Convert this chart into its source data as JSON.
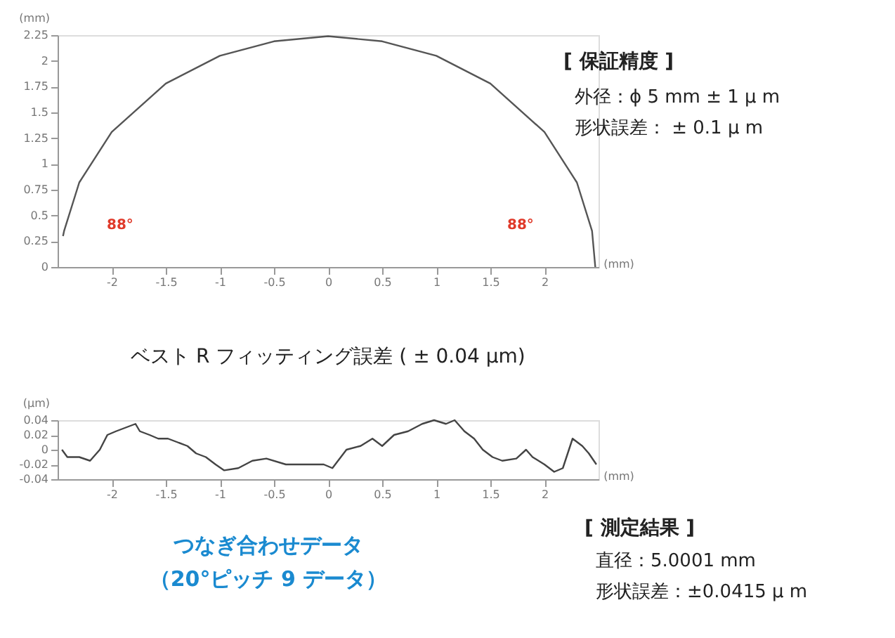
{
  "chart_data": [
    {
      "type": "line",
      "xlabel": "(mm)",
      "ylabel": "(mm)",
      "series": [
        {
          "color": "#555555",
          "x": [
            -2.45,
            -2.44,
            -2.3,
            -2.0,
            -1.5,
            -1.0,
            -0.5,
            0,
            0.5,
            1.0,
            1.5,
            2.0,
            2.3,
            2.44,
            2.47
          ],
          "values": [
            0.3,
            0.35,
            0.82,
            1.31,
            1.78,
            2.05,
            2.19,
            2.24,
            2.19,
            2.05,
            1.78,
            1.31,
            0.82,
            0.35,
            0.0
          ]
        }
      ],
      "xlim": [
        -2.5,
        2.5
      ],
      "ylim": [
        0,
        2.25
      ],
      "xticks": [
        -2,
        -1.5,
        -1,
        -0.5,
        0,
        0.5,
        1,
        1.5,
        2
      ],
      "yticks": [
        0,
        0.25,
        0.5,
        0.75,
        1,
        1.25,
        1.5,
        1.75,
        2,
        2.25
      ],
      "annotations": [
        "88°",
        "88°",
        "[ 保証精度 ]",
        "外径：ϕ 5 mm ± 1 μ m",
        "形状誤差： ± 0.1 μ m"
      ]
    },
    {
      "type": "line",
      "title": "ベスト R フィッティング誤差 ( ± 0.04 μm)",
      "xlabel": "(mm)",
      "ylabel": "(μm)",
      "series": [
        {
          "color": "#444444",
          "x": [
            -2.46,
            -2.41,
            -2.3,
            -2.2,
            -2.11,
            -2.04,
            -1.96,
            -1.87,
            -1.78,
            -1.74,
            -1.65,
            -1.57,
            -1.48,
            -1.39,
            -1.3,
            -1.22,
            -1.13,
            -1.04,
            -0.96,
            -0.83,
            -0.7,
            -0.57,
            -0.39,
            -0.22,
            -0.04,
            0.04,
            0.17,
            0.3,
            0.41,
            0.5,
            0.61,
            0.74,
            0.87,
            0.98,
            1.09,
            1.17,
            1.26,
            1.35,
            1.43,
            1.52,
            1.61,
            1.74,
            1.83,
            1.89,
            2.0,
            2.09,
            2.17,
            2.26,
            2.35,
            2.41,
            2.48
          ],
          "values": [
            0,
            -0.01,
            -0.01,
            -0.015,
            0,
            0.02,
            0.025,
            0.03,
            0.035,
            0.025,
            0.02,
            0.015,
            0.015,
            0.01,
            0.005,
            -0.005,
            -0.01,
            -0.02,
            -0.028,
            -0.025,
            -0.015,
            -0.012,
            -0.02,
            -0.02,
            -0.02,
            -0.025,
            0,
            0.005,
            0.015,
            0.005,
            0.02,
            0.025,
            0.035,
            0.04,
            0.035,
            0.04,
            0.025,
            0.015,
            0,
            -0.01,
            -0.015,
            -0.012,
            0,
            -0.01,
            -0.02,
            -0.03,
            -0.025,
            0.015,
            0.005,
            -0.005,
            -0.02
          ]
        }
      ],
      "xlim": [
        -2.5,
        2.5
      ],
      "ylim": [
        -0.04,
        0.04
      ],
      "xticks": [
        -2,
        -1.5,
        -1,
        -0.5,
        0,
        0.5,
        1,
        1.5,
        2
      ],
      "yticks": [
        -0.04,
        -0.02,
        0,
        0.02,
        0.04
      ],
      "annotations": [
        "つなぎ合わせデータ",
        "（20°ピッチ 9 データ）",
        "[ 測定結果 ]",
        "直径：5.0001 mm",
        "形状誤差：±0.0415 μ m"
      ]
    }
  ]
}
